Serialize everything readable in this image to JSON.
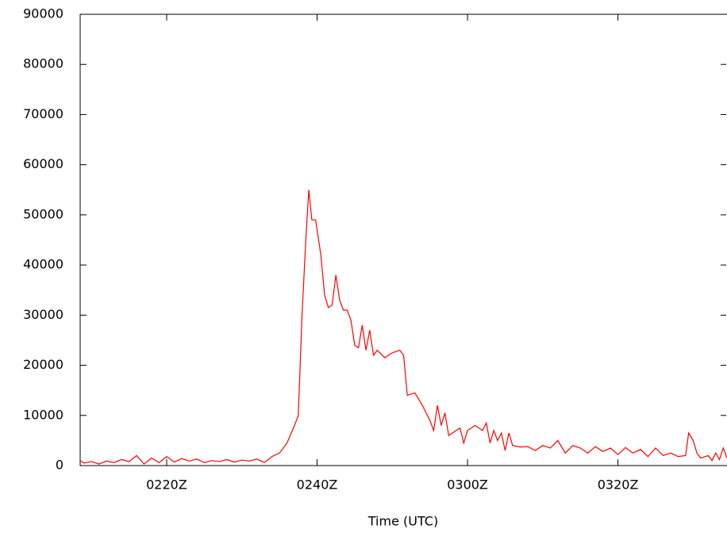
{
  "chart_data": {
    "type": "line",
    "xlabel": "Time (UTC)",
    "x": [
      8.5,
      9,
      10,
      11,
      12,
      13,
      14,
      15,
      16,
      17,
      18,
      19,
      20,
      21,
      22,
      23,
      24,
      25,
      26,
      27,
      28,
      29,
      30,
      31,
      32,
      33,
      34,
      35,
      36,
      37,
      37.5,
      38,
      38.5,
      38.9,
      39.3,
      39.8,
      40.5,
      41,
      41.5,
      42,
      42.5,
      43,
      43.5,
      44,
      44.5,
      45,
      45.5,
      46,
      46.5,
      47,
      47.5,
      48,
      49,
      50,
      51,
      51.5,
      52,
      53,
      54,
      55,
      55.5,
      56,
      56.5,
      57,
      57.5,
      58,
      59,
      59.5,
      60,
      61,
      62,
      62.5,
      63,
      63.5,
      64,
      64.5,
      65,
      65.5,
      66,
      67,
      68,
      69,
      70,
      71,
      72,
      73,
      74,
      75,
      76,
      77,
      78,
      79,
      80,
      81,
      82,
      83,
      84,
      85,
      86,
      87,
      88,
      89,
      89.4,
      90,
      90.5,
      91,
      92,
      92.5,
      93,
      93.5,
      94,
      94.5
    ],
    "values": [
      1000,
      500,
      800,
      300,
      900,
      600,
      1200,
      800,
      2000,
      300,
      1500,
      600,
      1800,
      700,
      1400,
      900,
      1300,
      600,
      1000,
      800,
      1200,
      700,
      1100,
      900,
      1300,
      600,
      1800,
      2500,
      4500,
      8000,
      10000,
      30000,
      45000,
      55000,
      49000,
      49000,
      42000,
      34000,
      31500,
      32000,
      38000,
      33000,
      31000,
      31000,
      29000,
      24000,
      23500,
      28000,
      23000,
      27000,
      22000,
      23000,
      21500,
      22500,
      23000,
      22000,
      14000,
      14500,
      12000,
      9000,
      7000,
      12000,
      8000,
      10500,
      6000,
      6500,
      7500,
      4500,
      7000,
      8000,
      7000,
      8500,
      4500,
      7000,
      5000,
      6500,
      3000,
      6500,
      4000,
      3700,
      3800,
      3000,
      4000,
      3500,
      5000,
      2500,
      4000,
      3500,
      2500,
      3800,
      2800,
      3500,
      2200,
      3600,
      2500,
      3200,
      1800,
      3500,
      2000,
      2500,
      1800,
      2000,
      6500,
      5000,
      2500,
      1500,
      2000,
      1000,
      2500,
      1200,
      3500,
      1500
    ],
    "color": "#ff0000",
    "xlim": [
      8.5,
      94.5
    ],
    "xticks": [
      {
        "value": 20,
        "label": "0220Z"
      },
      {
        "value": 40,
        "label": "0240Z"
      },
      {
        "value": 60,
        "label": "0300Z"
      },
      {
        "value": 80,
        "label": "0320Z"
      }
    ],
    "ylim": [
      0,
      90000
    ],
    "yticks": [
      0,
      10000,
      20000,
      30000,
      40000,
      50000,
      60000,
      70000,
      80000,
      90000
    ]
  }
}
